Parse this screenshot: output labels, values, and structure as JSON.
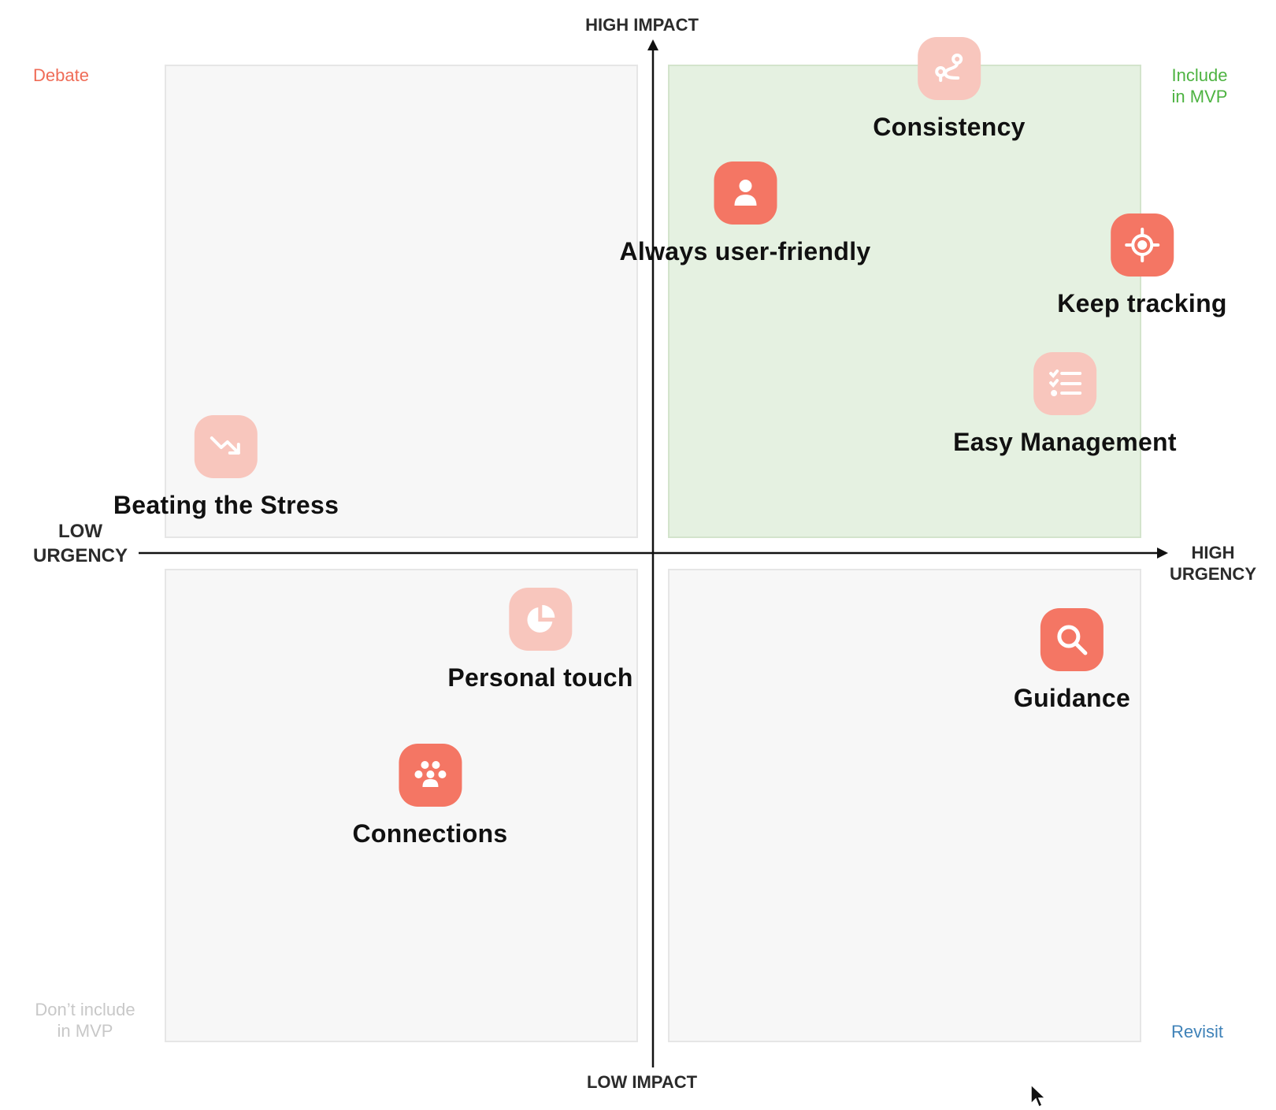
{
  "axes": {
    "y_top": "HIGH IMPACT",
    "y_bottom": "LOW IMPACT",
    "x_left": "LOW\nURGENCY",
    "x_right": "HIGH\nURGENCY"
  },
  "quadrants": {
    "top_left": "Debate",
    "top_right": "Include\nin MVP",
    "bottom_left": "Don’t include\nin MVP",
    "bottom_right": "Revisit"
  },
  "colors": {
    "accent_strong": "#f47664",
    "accent_soft": "#f8c6bd",
    "include_green": "#4db341",
    "revisit_blue": "#3f82b8",
    "debate_red": "#ef6c57"
  },
  "features": [
    {
      "label": "Consistency",
      "icon": "route-icon",
      "style": "soft"
    },
    {
      "label": "Always user-friendly",
      "icon": "user-icon",
      "style": "strong"
    },
    {
      "label": "Keep tracking",
      "icon": "target-icon",
      "style": "strong"
    },
    {
      "label": "Easy Management",
      "icon": "checklist-icon",
      "style": "soft"
    },
    {
      "label": "Beating the Stress",
      "icon": "trend-down-icon",
      "style": "soft"
    },
    {
      "label": "Personal touch",
      "icon": "pie-chart-icon",
      "style": "soft"
    },
    {
      "label": "Guidance",
      "icon": "search-icon",
      "style": "strong"
    },
    {
      "label": "Connections",
      "icon": "group-icon",
      "style": "strong"
    }
  ]
}
